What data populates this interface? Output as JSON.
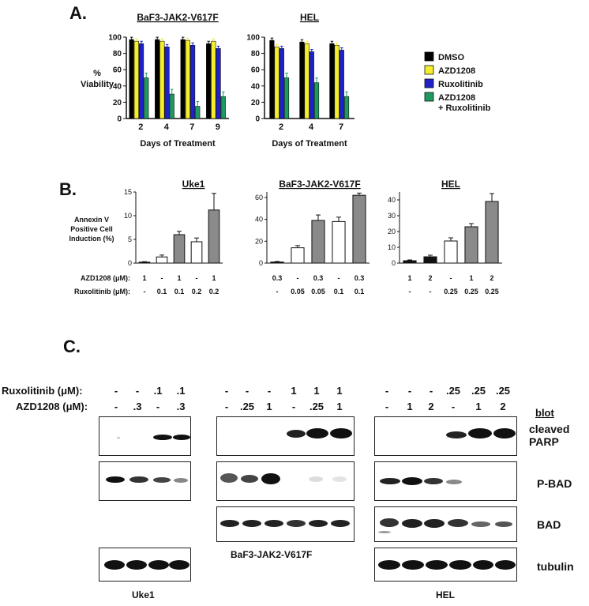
{
  "panels": {
    "a": "A.",
    "b": "B.",
    "c": "C."
  },
  "panelA": {
    "ylabel": "%\nViability",
    "xlabel": "Days of Treatment",
    "yticks": [
      "0",
      "20",
      "40",
      "60",
      "80",
      "100"
    ],
    "legend": [
      {
        "label": "DMSO",
        "color": "#000000"
      },
      {
        "label": "AZD1208",
        "color": "#f5ee2a"
      },
      {
        "label": "Ruxolitinib",
        "color": "#1e22c8"
      },
      {
        "label": "AZD1208\n+ Ruxolitinib",
        "color": "#1e9a5e"
      }
    ]
  },
  "panelB": {
    "ylabel": "Annexin V\nPositive Cell\nInduction (%)",
    "row1": "AZD1208 (μM):",
    "row2": "Ruxolitinib (μM):"
  },
  "panelC": {
    "row_ruxo": "Ruxolitinib (μM):",
    "row_azd": "AZD1208 (μM):",
    "blot_header": "blot",
    "labels": [
      "cleaved\nPARP",
      "P-BAD",
      "BAD",
      "tubulin"
    ],
    "cells": [
      "Uke1",
      "BaF3-JAK2-V617F",
      "HEL"
    ],
    "uke1": {
      "ruxo": [
        "-",
        "-",
        ".1",
        ".1"
      ],
      "azd": [
        "-",
        ".3",
        "-",
        ".3"
      ]
    },
    "baf3": {
      "ruxo": [
        "-",
        "-",
        "-",
        "1",
        "1",
        "1"
      ],
      "azd": [
        "-",
        ".25",
        "1",
        "-",
        ".25",
        "1"
      ]
    },
    "hel": {
      "ruxo": [
        "-",
        "-",
        "-",
        ".25",
        ".25",
        ".25"
      ],
      "azd": [
        "-",
        "1",
        "2",
        "-",
        "1",
        "2"
      ]
    }
  },
  "chart_data": [
    {
      "type": "bar",
      "title": "BaF3-JAK2-V617F",
      "xlabel": "Days of Treatment",
      "ylabel": "% Viability",
      "ylim": [
        0,
        100
      ],
      "categories": [
        "2",
        "4",
        "7",
        "9"
      ],
      "series": [
        {
          "name": "DMSO",
          "color": "#000000",
          "values": [
            97,
            97,
            97,
            92
          ]
        },
        {
          "name": "AZD1208",
          "color": "#f5ee2a",
          "values": [
            95,
            95,
            96,
            95
          ]
        },
        {
          "name": "Ruxolitinib",
          "color": "#1e22c8",
          "values": [
            92,
            88,
            90,
            86
          ]
        },
        {
          "name": "AZD1208 + Ruxolitinib",
          "color": "#1e9a5e",
          "values": [
            50,
            30,
            15,
            27
          ]
        }
      ]
    },
    {
      "type": "bar",
      "title": "HEL",
      "xlabel": "Days of Treatment",
      "ylabel": "% Viability",
      "ylim": [
        0,
        100
      ],
      "categories": [
        "2",
        "4",
        "7"
      ],
      "series": [
        {
          "name": "DMSO",
          "color": "#000000",
          "values": [
            96,
            94,
            92
          ]
        },
        {
          "name": "AZD1208",
          "color": "#f5ee2a",
          "values": [
            88,
            92,
            90
          ]
        },
        {
          "name": "Ruxolitinib",
          "color": "#1e22c8",
          "values": [
            86,
            82,
            84
          ]
        },
        {
          "name": "AZD1208 + Ruxolitinib",
          "color": "#1e9a5e",
          "values": [
            50,
            44,
            27
          ]
        }
      ]
    },
    {
      "type": "bar",
      "title": "Uke1",
      "yticks": [
        "0",
        "5",
        "10",
        "15"
      ],
      "ylim": [
        0,
        15
      ],
      "categories": [
        "1|-",
        "-|0.1",
        "1|0.1",
        "-|0.2",
        "1|0.2"
      ],
      "azd": [
        "1",
        "-",
        "1",
        "-",
        "1"
      ],
      "ruxo": [
        "-",
        "0.1",
        "0.1",
        "0.2",
        "0.2"
      ],
      "values": [
        0.2,
        1.3,
        6.0,
        4.5,
        11.2
      ],
      "errors": [
        0.1,
        0.4,
        0.7,
        0.8,
        3.5
      ],
      "fills": [
        "black",
        "white",
        "gray",
        "white",
        "gray"
      ]
    },
    {
      "type": "bar",
      "title": "BaF3-JAK2-V617F",
      "yticks": [
        "0",
        "20",
        "40",
        "60"
      ],
      "ylim": [
        0,
        65
      ],
      "categories": [
        "0.3|-",
        "-|0.05",
        "0.3|0.05",
        "-|0.1",
        "0.3|0.1"
      ],
      "azd": [
        "0.3",
        "-",
        "0.3",
        "-",
        "0.3"
      ],
      "ruxo": [
        "-",
        "0.05",
        "0.05",
        "0.1",
        "0.1"
      ],
      "values": [
        1,
        14,
        39,
        38,
        62
      ],
      "errors": [
        0.5,
        2,
        5,
        4,
        2
      ],
      "fills": [
        "black",
        "white",
        "gray",
        "white",
        "gray"
      ]
    },
    {
      "type": "bar",
      "title": "HEL",
      "yticks": [
        "0",
        "10",
        "20",
        "30",
        "40"
      ],
      "ylim": [
        0,
        45
      ],
      "categories": [
        "1|-",
        "2|-",
        "-|0.25",
        "1|0.25",
        "2|0.25"
      ],
      "azd": [
        "1",
        "2",
        "-",
        "1",
        "2"
      ],
      "ruxo": [
        "-",
        "-",
        "0.25",
        "0.25",
        "0.25"
      ],
      "values": [
        1.5,
        4,
        14,
        23,
        39
      ],
      "errors": [
        0.5,
        1,
        2,
        2,
        5
      ],
      "fills": [
        "black",
        "black",
        "white",
        "gray",
        "gray"
      ]
    }
  ]
}
